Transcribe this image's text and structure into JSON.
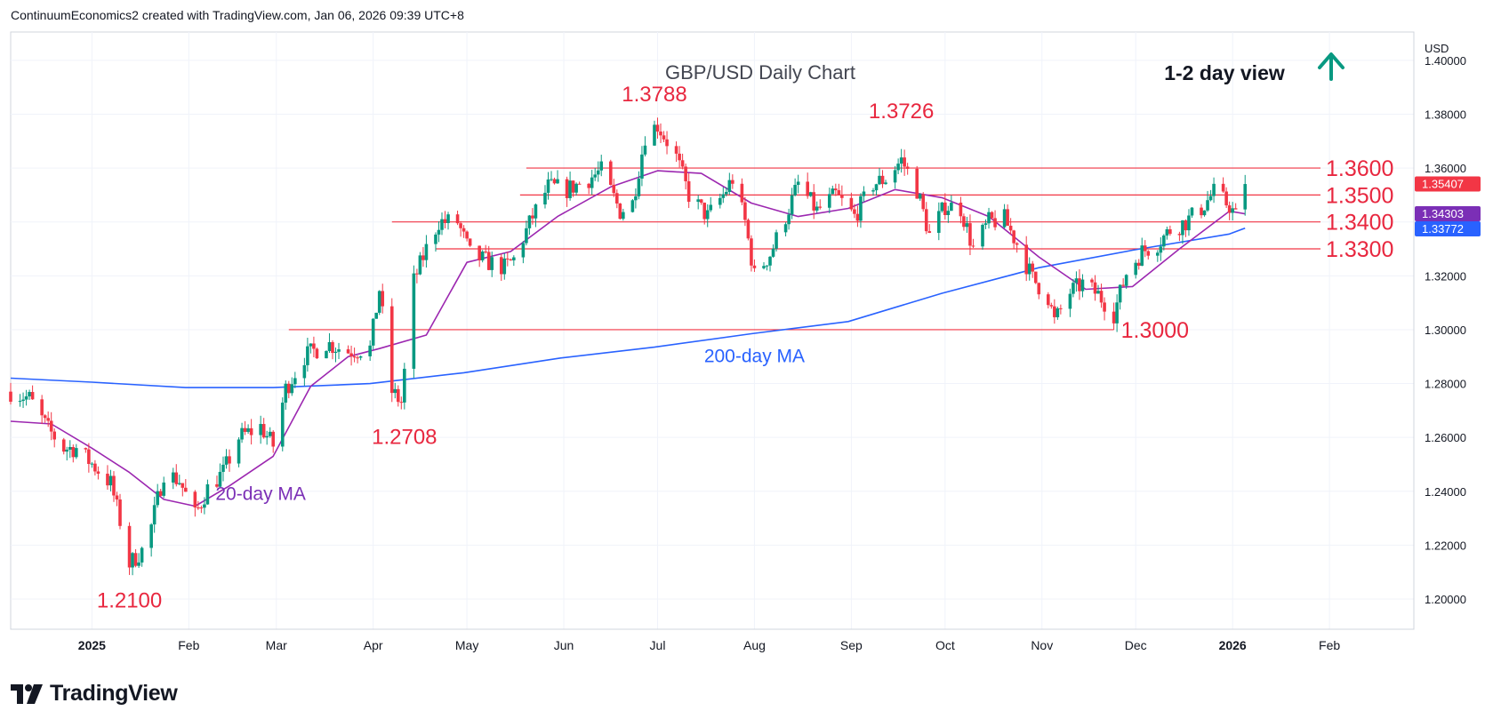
{
  "header": {
    "credit": "ContinuumEconomics2 created with TradingView.com, Jan 06, 2026 09:39 UTC+8"
  },
  "footer": {
    "brand": "TradingView",
    "logo_icon": "tradingview-logo-icon"
  },
  "view": {
    "label": "1-2 day view",
    "icon": "arrow-up-icon",
    "color": "#089981"
  },
  "colors": {
    "up": "#089981",
    "down": "#f23645",
    "ma20": "#9c27b0",
    "ma200": "#2962ff",
    "level": "#f23645",
    "label": "#e8273f"
  },
  "chart_data": {
    "type": "candlestick",
    "title": "GBP/USD Daily Chart",
    "currency": "USD",
    "y_ticks": [
      "1.40000",
      "1.38000",
      "1.36000",
      "1.34000",
      "1.32000",
      "1.30000",
      "1.28000",
      "1.26000",
      "1.24000",
      "1.22000",
      "1.20000"
    ],
    "ylim": [
      1.1888,
      1.4105
    ],
    "x_ticks": [
      {
        "label": "2025",
        "date": "2025-01-01",
        "bold": true
      },
      {
        "label": "Feb",
        "date": "2025-02-01"
      },
      {
        "label": "Mar",
        "date": "2025-03-01"
      },
      {
        "label": "Apr",
        "date": "2025-04-01"
      },
      {
        "label": "May",
        "date": "2025-05-01"
      },
      {
        "label": "Jun",
        "date": "2025-06-01"
      },
      {
        "label": "Jul",
        "date": "2025-07-01"
      },
      {
        "label": "Aug",
        "date": "2025-08-01"
      },
      {
        "label": "Sep",
        "date": "2025-09-01"
      },
      {
        "label": "Oct",
        "date": "2025-10-01"
      },
      {
        "label": "Nov",
        "date": "2025-11-01"
      },
      {
        "label": "Dec",
        "date": "2025-12-01"
      },
      {
        "label": "2026",
        "date": "2026-01-01",
        "bold": true
      },
      {
        "label": "Feb",
        "date": "2026-02-01"
      }
    ],
    "xlim": [
      "2024-12-06",
      "2026-02-28"
    ],
    "levels": [
      {
        "label": "1.3600",
        "value": 1.36,
        "from": "2025-05-20"
      },
      {
        "label": "1.3500",
        "value": 1.35,
        "from": "2025-05-18"
      },
      {
        "label": "1.3400",
        "value": 1.34,
        "from": "2025-04-07"
      },
      {
        "label": "1.3300",
        "value": 1.33,
        "from": "2025-04-21"
      },
      {
        "label": "1.3000",
        "value": 1.3,
        "from": "2025-03-05",
        "to": "2025-11-24"
      }
    ],
    "annotations": [
      {
        "text": "1.3788",
        "date": "2025-06-30",
        "value": 1.3788
      },
      {
        "text": "1.3726",
        "date": "2025-09-17",
        "value": 1.3726
      },
      {
        "text": "1.2708",
        "date": "2025-04-11",
        "value": 1.2708
      },
      {
        "text": "1.2100",
        "date": "2025-01-13",
        "value": 1.21
      }
    ],
    "ma_labels": [
      {
        "text": "200-day MA",
        "series": "ma200",
        "date": "2025-08-01",
        "value": 1.2905
      },
      {
        "text": "20-day MA",
        "series": "ma20",
        "date": "2025-02-24",
        "value": 1.2395
      }
    ],
    "badges": [
      {
        "text": "1.35407",
        "value": 1.35407,
        "color": "#f23645"
      },
      {
        "text": "1.34303",
        "value": 1.34303,
        "color": "#7b2fb6"
      },
      {
        "text": "1.33772",
        "value": 1.33772,
        "color": "#2962ff"
      }
    ],
    "price_path": [
      [
        "2024-12-06",
        1.277
      ],
      [
        "2024-12-12",
        1.2745
      ],
      [
        "2024-12-18",
        1.263
      ],
      [
        "2024-12-23",
        1.256
      ],
      [
        "2024-12-27",
        1.256
      ],
      [
        "2025-01-02",
        1.249
      ],
      [
        "2025-01-07",
        1.243
      ],
      [
        "2025-01-10",
        1.229
      ],
      [
        "2025-01-13",
        1.213
      ],
      [
        "2025-01-17",
        1.218
      ],
      [
        "2025-01-20",
        1.227
      ],
      [
        "2025-01-24",
        1.247
      ],
      [
        "2025-01-29",
        1.244
      ],
      [
        "2025-02-03",
        1.231
      ],
      [
        "2025-02-07",
        1.241
      ],
      [
        "2025-02-12",
        1.247
      ],
      [
        "2025-02-17",
        1.26
      ],
      [
        "2025-02-24",
        1.264
      ],
      [
        "2025-02-28",
        1.257
      ],
      [
        "2025-03-04",
        1.278
      ],
      [
        "2025-03-10",
        1.29
      ],
      [
        "2025-03-17",
        1.295
      ],
      [
        "2025-03-24",
        1.292
      ],
      [
        "2025-03-31",
        1.293
      ],
      [
        "2025-04-03",
        1.315
      ],
      [
        "2025-04-07",
        1.277
      ],
      [
        "2025-04-10",
        1.273
      ],
      [
        "2025-04-14",
        1.318
      ],
      [
        "2025-04-18",
        1.33
      ],
      [
        "2025-04-22",
        1.34
      ],
      [
        "2025-04-28",
        1.34
      ],
      [
        "2025-05-02",
        1.328
      ],
      [
        "2025-05-08",
        1.325
      ],
      [
        "2025-05-13",
        1.323
      ],
      [
        "2025-05-16",
        1.326
      ],
      [
        "2025-05-22",
        1.342
      ],
      [
        "2025-05-27",
        1.353
      ],
      [
        "2025-06-02",
        1.352
      ],
      [
        "2025-06-09",
        1.356
      ],
      [
        "2025-06-13",
        1.359
      ],
      [
        "2025-06-19",
        1.344
      ],
      [
        "2025-06-23",
        1.347
      ],
      [
        "2025-06-27",
        1.372
      ],
      [
        "2025-07-01",
        1.376
      ],
      [
        "2025-07-07",
        1.364
      ],
      [
        "2025-07-11",
        1.35
      ],
      [
        "2025-07-17",
        1.342
      ],
      [
        "2025-07-22",
        1.35
      ],
      [
        "2025-07-25",
        1.356
      ],
      [
        "2025-07-29",
        1.34
      ],
      [
        "2025-08-01",
        1.32
      ],
      [
        "2025-08-06",
        1.328
      ],
      [
        "2025-08-11",
        1.342
      ],
      [
        "2025-08-15",
        1.354
      ],
      [
        "2025-08-21",
        1.344
      ],
      [
        "2025-08-27",
        1.35
      ],
      [
        "2025-09-02",
        1.342
      ],
      [
        "2025-09-08",
        1.354
      ],
      [
        "2025-09-12",
        1.356
      ],
      [
        "2025-09-17",
        1.363
      ],
      [
        "2025-09-22",
        1.352
      ],
      [
        "2025-09-26",
        1.335
      ],
      [
        "2025-10-01",
        1.346
      ],
      [
        "2025-10-06",
        1.345
      ],
      [
        "2025-10-10",
        1.33
      ],
      [
        "2025-10-15",
        1.34
      ],
      [
        "2025-10-20",
        1.341
      ],
      [
        "2025-10-24",
        1.332
      ],
      [
        "2025-10-29",
        1.319
      ],
      [
        "2025-11-03",
        1.312
      ],
      [
        "2025-11-05",
        1.303
      ],
      [
        "2025-11-10",
        1.314
      ],
      [
        "2025-11-14",
        1.317
      ],
      [
        "2025-11-19",
        1.313
      ],
      [
        "2025-11-24",
        1.306
      ],
      [
        "2025-11-28",
        1.321
      ],
      [
        "2025-12-03",
        1.329
      ],
      [
        "2025-12-08",
        1.332
      ],
      [
        "2025-12-12",
        1.337
      ],
      [
        "2025-12-17",
        1.34
      ],
      [
        "2025-12-22",
        1.345
      ],
      [
        "2025-12-26",
        1.351
      ],
      [
        "2025-12-31",
        1.346
      ],
      [
        "2026-01-02",
        1.342
      ],
      [
        "2026-01-05",
        1.3541
      ]
    ],
    "ma20": [
      [
        "2024-12-06",
        1.266
      ],
      [
        "2024-12-19",
        1.265
      ],
      [
        "2025-01-01",
        1.256
      ],
      [
        "2025-01-13",
        1.247
      ],
      [
        "2025-01-24",
        1.237
      ],
      [
        "2025-02-03",
        1.2345
      ],
      [
        "2025-02-14",
        1.242
      ],
      [
        "2025-02-28",
        1.253
      ],
      [
        "2025-03-12",
        1.279
      ],
      [
        "2025-03-24",
        1.29
      ],
      [
        "2025-04-03",
        1.293
      ],
      [
        "2025-04-18",
        1.298
      ],
      [
        "2025-05-01",
        1.325
      ],
      [
        "2025-05-15",
        1.329
      ],
      [
        "2025-05-30",
        1.342
      ],
      [
        "2025-06-16",
        1.353
      ],
      [
        "2025-07-01",
        1.359
      ],
      [
        "2025-07-15",
        1.358
      ],
      [
        "2025-07-31",
        1.347
      ],
      [
        "2025-08-15",
        1.342
      ],
      [
        "2025-08-31",
        1.345
      ],
      [
        "2025-09-15",
        1.352
      ],
      [
        "2025-09-30",
        1.349
      ],
      [
        "2025-10-15",
        1.342
      ],
      [
        "2025-10-31",
        1.327
      ],
      [
        "2025-11-15",
        1.315
      ],
      [
        "2025-11-30",
        1.316
      ],
      [
        "2025-12-15",
        1.33
      ],
      [
        "2025-12-31",
        1.344
      ],
      [
        "2026-01-05",
        1.343
      ]
    ],
    "ma200": [
      [
        "2024-12-06",
        1.282
      ],
      [
        "2025-01-01",
        1.2805
      ],
      [
        "2025-01-31",
        1.2785
      ],
      [
        "2025-02-28",
        1.2785
      ],
      [
        "2025-03-31",
        1.28
      ],
      [
        "2025-04-30",
        1.284
      ],
      [
        "2025-05-31",
        1.2895
      ],
      [
        "2025-06-30",
        1.2935
      ],
      [
        "2025-07-31",
        1.2985
      ],
      [
        "2025-08-31",
        1.303
      ],
      [
        "2025-09-30",
        1.3135
      ],
      [
        "2025-10-31",
        1.323
      ],
      [
        "2025-11-30",
        1.3295
      ],
      [
        "2025-12-31",
        1.3355
      ],
      [
        "2026-01-05",
        1.3377
      ]
    ]
  }
}
